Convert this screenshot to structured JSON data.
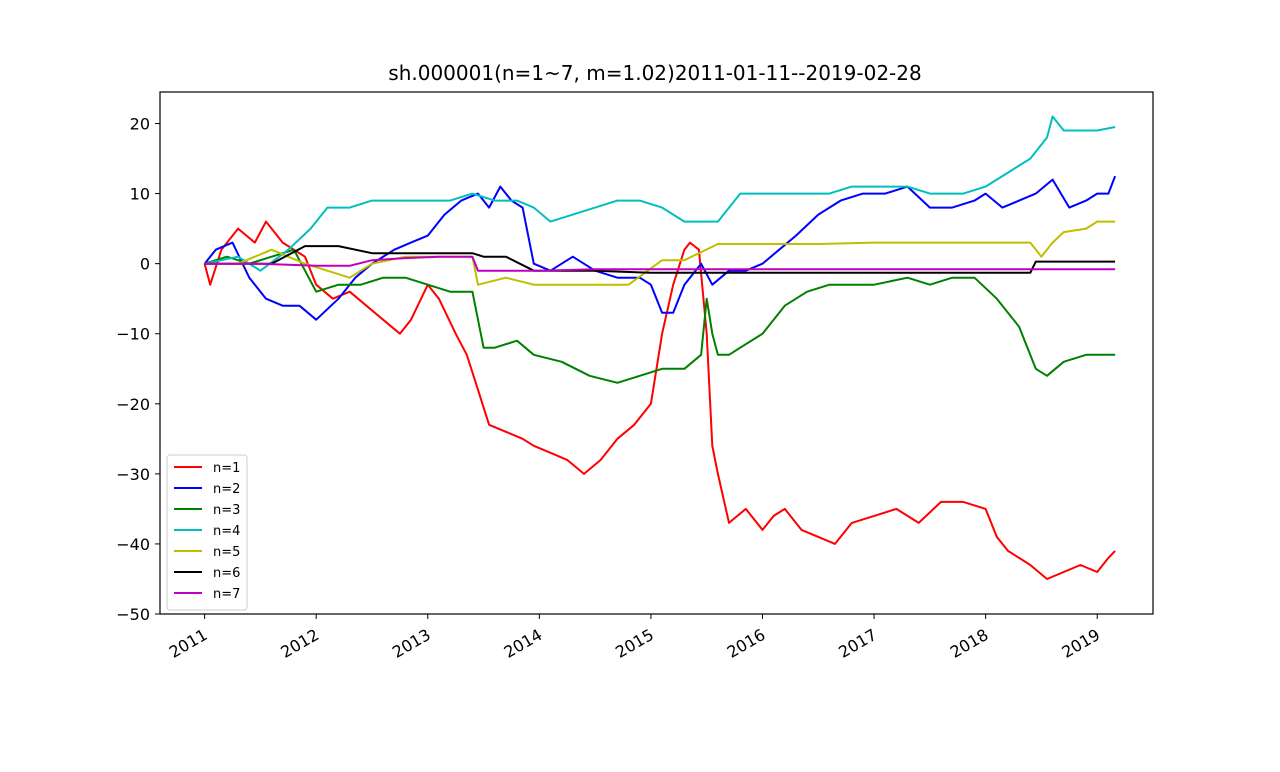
{
  "chart_data": {
    "type": "line",
    "title": "sh.000001(n=1~7, m=1.02)2011-01-11--2019-02-28",
    "xlabel": "",
    "ylabel": "",
    "xlim": [
      2010.6,
      2019.5
    ],
    "ylim": [
      -50,
      24.5
    ],
    "x_ticks": [
      2011,
      2012,
      2013,
      2014,
      2015,
      2016,
      2017,
      2018,
      2019
    ],
    "x_tick_labels": [
      "2011",
      "2012",
      "2013",
      "2014",
      "2015",
      "2016",
      "2017",
      "2018",
      "2019"
    ],
    "y_ticks": [
      20,
      10,
      0,
      -10,
      -20,
      -30,
      -40,
      -50
    ],
    "y_tick_labels": [
      "20",
      "10",
      "0",
      "−10",
      "−20",
      "−30",
      "−40",
      "−50"
    ],
    "grid": false,
    "legend_position": "lower-left",
    "series": [
      {
        "name": "n=1",
        "color": "#ff0000",
        "x": [
          2011.0,
          2011.05,
          2011.15,
          2011.3,
          2011.45,
          2011.55,
          2011.7,
          2011.9,
          2012.0,
          2012.15,
          2012.3,
          2012.45,
          2012.6,
          2012.75,
          2012.85,
          2013.0,
          2013.1,
          2013.25,
          2013.35,
          2013.45,
          2013.55,
          2013.7,
          2013.85,
          2013.95,
          2014.1,
          2014.25,
          2014.4,
          2014.55,
          2014.7,
          2014.85,
          2015.0,
          2015.1,
          2015.2,
          2015.3,
          2015.35,
          2015.43,
          2015.5,
          2015.55,
          2015.6,
          2015.7,
          2015.85,
          2016.0,
          2016.1,
          2016.2,
          2016.35,
          2016.5,
          2016.65,
          2016.8,
          2017.0,
          2017.2,
          2017.4,
          2017.6,
          2017.8,
          2018.0,
          2018.1,
          2018.2,
          2018.4,
          2018.55,
          2018.7,
          2018.85,
          2019.0,
          2019.1,
          2019.16
        ],
        "values": [
          0,
          -3,
          2,
          5,
          3,
          6,
          3,
          1,
          -3,
          -5,
          -4,
          -6,
          -8,
          -10,
          -8,
          -3,
          -5,
          -10,
          -13,
          -18,
          -23,
          -24,
          -25,
          -26,
          -27,
          -28,
          -30,
          -28,
          -25,
          -23,
          -20,
          -10,
          -3,
          2,
          3,
          2,
          -10,
          -26,
          -30,
          -37,
          -35,
          -38,
          -36,
          -35,
          -38,
          -39,
          -40,
          -37,
          -36,
          -35,
          -37,
          -34,
          -34,
          -35,
          -39,
          -41,
          -43,
          -45,
          -44,
          -43,
          -44,
          -42,
          -41
        ]
      },
      {
        "name": "n=2",
        "color": "#0000ff",
        "x": [
          2011.0,
          2011.1,
          2011.25,
          2011.4,
          2011.55,
          2011.7,
          2011.85,
          2012.0,
          2012.2,
          2012.35,
          2012.5,
          2012.7,
          2012.85,
          2013.0,
          2013.15,
          2013.3,
          2013.45,
          2013.55,
          2013.65,
          2013.75,
          2013.85,
          2013.95,
          2014.1,
          2014.3,
          2014.5,
          2014.7,
          2014.9,
          2015.0,
          2015.1,
          2015.2,
          2015.3,
          2015.45,
          2015.55,
          2015.7,
          2015.85,
          2016.0,
          2016.15,
          2016.3,
          2016.5,
          2016.7,
          2016.9,
          2017.1,
          2017.3,
          2017.5,
          2017.7,
          2017.9,
          2018.0,
          2018.15,
          2018.3,
          2018.45,
          2018.6,
          2018.75,
          2018.9,
          2019.0,
          2019.1,
          2019.16
        ],
        "values": [
          0,
          2,
          3,
          -2,
          -5,
          -6,
          -6,
          -8,
          -5,
          -2,
          0,
          2,
          3,
          4,
          7,
          9,
          10,
          8,
          11,
          9,
          8,
          0,
          -1,
          1,
          -1,
          -2,
          -2,
          -3,
          -7,
          -7,
          -3,
          0,
          -3,
          -1,
          -1,
          0,
          2,
          4,
          7,
          9,
          10,
          10,
          11,
          8,
          8,
          9,
          10,
          8,
          9,
          10,
          12,
          8,
          9,
          10,
          10,
          12.5
        ]
      },
      {
        "name": "n=3",
        "color": "#008000",
        "x": [
          2011.0,
          2011.2,
          2011.4,
          2011.6,
          2011.8,
          2012.0,
          2012.2,
          2012.4,
          2012.6,
          2012.8,
          2013.0,
          2013.2,
          2013.4,
          2013.5,
          2013.6,
          2013.8,
          2013.95,
          2014.2,
          2014.45,
          2014.7,
          2014.9,
          2015.1,
          2015.3,
          2015.45,
          2015.5,
          2015.55,
          2015.6,
          2015.7,
          2015.8,
          2016.0,
          2016.2,
          2016.4,
          2016.6,
          2016.8,
          2017.0,
          2017.3,
          2017.5,
          2017.7,
          2017.9,
          2018.1,
          2018.3,
          2018.45,
          2018.55,
          2018.7,
          2018.9,
          2019.0,
          2019.16
        ],
        "values": [
          0,
          1,
          0,
          1,
          2,
          -4,
          -3,
          -3,
          -2,
          -2,
          -3,
          -4,
          -4,
          -12,
          -12,
          -11,
          -13,
          -14,
          -16,
          -17,
          -16,
          -15,
          -15,
          -13,
          -5,
          -10,
          -13,
          -13,
          -12,
          -10,
          -6,
          -4,
          -3,
          -3,
          -3,
          -2,
          -3,
          -2,
          -2,
          -5,
          -9,
          -15,
          -16,
          -14,
          -13,
          -13,
          -13
        ]
      },
      {
        "name": "n=4",
        "color": "#00bfbf",
        "x": [
          2011.0,
          2011.3,
          2011.5,
          2011.75,
          2011.95,
          2012.1,
          2012.3,
          2012.5,
          2012.75,
          2013.0,
          2013.2,
          2013.4,
          2013.6,
          2013.8,
          2013.95,
          2014.1,
          2014.3,
          2014.5,
          2014.7,
          2014.9,
          2015.1,
          2015.3,
          2015.45,
          2015.6,
          2015.8,
          2016.0,
          2016.3,
          2016.6,
          2016.8,
          2017.0,
          2017.3,
          2017.5,
          2017.8,
          2018.0,
          2018.1,
          2018.2,
          2018.4,
          2018.55,
          2018.6,
          2018.7,
          2018.9,
          2019.0,
          2019.16
        ],
        "values": [
          0,
          1,
          -1,
          2,
          5,
          8,
          8,
          9,
          9,
          9,
          9,
          10,
          9,
          9,
          8,
          6,
          7,
          8,
          9,
          9,
          8,
          6,
          6,
          6,
          10,
          10,
          10,
          10,
          11,
          11,
          11,
          10,
          10,
          11,
          12,
          13,
          15,
          18,
          21,
          19,
          19,
          19,
          19.5
        ]
      },
      {
        "name": "n=5",
        "color": "#bfbf00",
        "x": [
          2011.0,
          2011.3,
          2011.6,
          2011.9,
          2012.1,
          2012.3,
          2012.5,
          2012.8,
          2013.1,
          2013.4,
          2013.45,
          2013.7,
          2013.95,
          2014.3,
          2014.8,
          2015.1,
          2015.3,
          2015.6,
          2016.0,
          2016.5,
          2017.0,
          2017.5,
          2018.0,
          2018.4,
          2018.5,
          2018.6,
          2018.7,
          2018.9,
          2019.0,
          2019.16
        ],
        "values": [
          0,
          0,
          2,
          0,
          -1,
          -2,
          0,
          1,
          1,
          1,
          -3,
          -2,
          -3,
          -3,
          -3,
          0.5,
          0.5,
          2.8,
          2.8,
          2.8,
          3,
          3,
          3,
          3,
          1,
          3,
          4.5,
          5,
          6,
          6
        ]
      },
      {
        "name": "n=6",
        "color": "#000000",
        "x": [
          2011.0,
          2011.3,
          2011.6,
          2011.9,
          2012.2,
          2012.5,
          2012.8,
          2013.1,
          2013.4,
          2013.5,
          2013.7,
          2013.95,
          2014.5,
          2015.0,
          2015.5,
          2016.0,
          2016.5,
          2017.0,
          2017.5,
          2018.0,
          2018.4,
          2018.45,
          2019.16
        ],
        "values": [
          0,
          0,
          0,
          2.5,
          2.5,
          1.5,
          1.5,
          1.5,
          1.5,
          1,
          1,
          -1,
          -1,
          -1.3,
          -1.3,
          -1.3,
          -1.3,
          -1.3,
          -1.3,
          -1.3,
          -1.3,
          0.3,
          0.3
        ]
      },
      {
        "name": "n=7",
        "color": "#bf00bf",
        "x": [
          2011.0,
          2011.5,
          2012.0,
          2012.3,
          2012.5,
          2012.8,
          2013.1,
          2013.4,
          2013.45,
          2013.7,
          2014.0,
          2014.5,
          2015.0,
          2015.5,
          2016.0,
          2017.0,
          2018.0,
          2018.5,
          2019.16
        ],
        "values": [
          0,
          0,
          -0.3,
          -0.3,
          0.5,
          0.8,
          1,
          1,
          -1,
          -1,
          -1,
          -0.8,
          -0.8,
          -0.8,
          -0.8,
          -0.8,
          -0.8,
          -0.8,
          -0.8
        ]
      }
    ]
  }
}
